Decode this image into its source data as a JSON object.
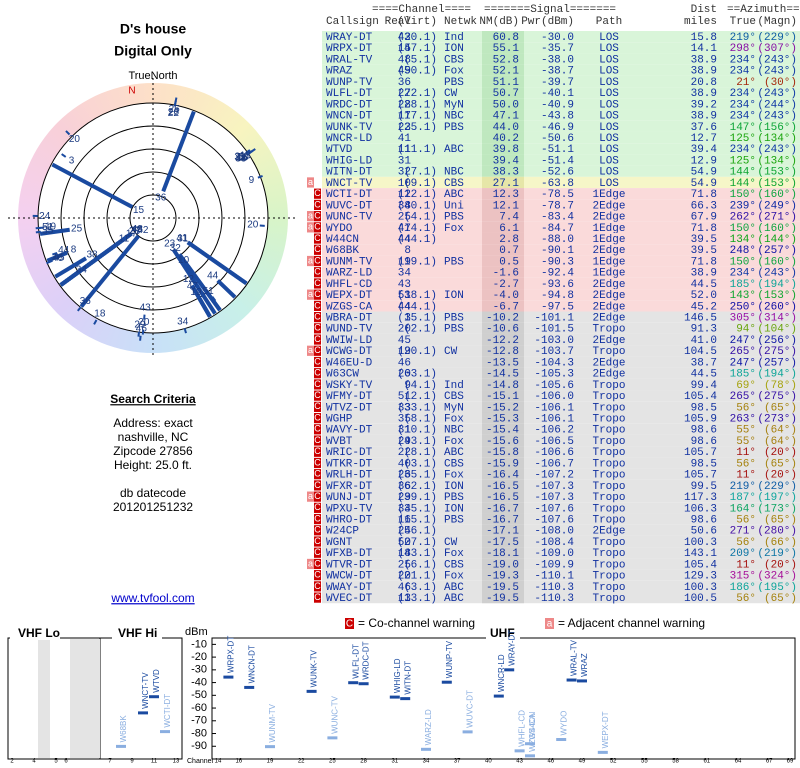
{
  "header": {
    "title": "D's house",
    "subtitle": "Digital Only"
  },
  "polar": {
    "north_label": "TrueNorth",
    "n": "N"
  },
  "search": {
    "title": "Search Criteria",
    "lines": [
      "Address: exact",
      "nashville, NC",
      "Zipcode 27856",
      "Height: 25.0 ft."
    ],
    "db_label": "db datecode",
    "db_value": "201201251232",
    "link": "www.tvfool.com"
  },
  "table": {
    "groups": {
      "channel": "====Channel====",
      "signal": "=======Signal=======",
      "dist": "Dist",
      "azimuth": "==Azimuth=="
    },
    "columns": {
      "c": "Callsign",
      "r": "Real",
      "v": "(Virt)",
      "n": "Netwk",
      "nm": "NM(dB)",
      "p": "Pwr(dBm)",
      "path": "Path",
      "d": "miles",
      "t": "True",
      "m": "(Magn)"
    },
    "rows": [
      {
        "c": "WRAY-DT",
        "r": "42",
        "v": "(30.1)",
        "n": "Ind",
        "nm": "60.8",
        "p": "-30.0",
        "path": "LOS",
        "d": "15.8",
        "t": "219°",
        "m": "(229°)"
      },
      {
        "c": "WRPX-DT",
        "r": "15",
        "v": "(47.1)",
        "n": "ION",
        "nm": "55.1",
        "p": "-35.7",
        "path": "LOS",
        "d": "14.1",
        "t": "298°",
        "m": "(307°)"
      },
      {
        "c": "WRAL-TV",
        "r": "48",
        "v": "(5.1)",
        "n": "CBS",
        "nm": "52.8",
        "p": "-38.0",
        "path": "LOS",
        "d": "38.9",
        "t": "234°",
        "m": "(243°)"
      },
      {
        "c": "WRAZ",
        "r": "49",
        "v": "(50.1)",
        "n": "Fox",
        "nm": "52.1",
        "p": "-38.7",
        "path": "LOS",
        "d": "38.9",
        "t": "234°",
        "m": "(243°)"
      },
      {
        "c": "WUNP-TV",
        "r": "36",
        "n": "PBS",
        "nm": "51.1",
        "p": "-39.7",
        "path": "LOS",
        "d": "20.8",
        "t": "21°",
        "m": "(30°)"
      },
      {
        "c": "WLFL-DT",
        "r": "27",
        "v": "(22.1)",
        "n": "CW",
        "nm": "50.7",
        "p": "-40.1",
        "path": "LOS",
        "d": "38.9",
        "t": "234°",
        "m": "(243°)"
      },
      {
        "c": "WRDC-DT",
        "r": "28",
        "v": "(28.1)",
        "n": "MyN",
        "nm": "50.0",
        "p": "-40.9",
        "path": "LOS",
        "d": "39.2",
        "t": "234°",
        "m": "(244°)"
      },
      {
        "c": "WNCN-DT",
        "r": "17",
        "v": "(17.1)",
        "n": "NBC",
        "nm": "47.1",
        "p": "-43.8",
        "path": "LOS",
        "d": "38.9",
        "t": "234°",
        "m": "(243°)"
      },
      {
        "c": "WUNK-TV",
        "r": "23",
        "v": "(25.1)",
        "n": "PBS",
        "nm": "44.0",
        "p": "-46.9",
        "path": "LOS",
        "d": "37.6",
        "t": "147°",
        "m": "(156°)"
      },
      {
        "c": "WNCR-LD",
        "r": "41",
        "nm": "40.2",
        "p": "-50.6",
        "path": "LOS",
        "d": "12.7",
        "t": "125°",
        "m": "(134°)"
      },
      {
        "c": "WTVD",
        "r": "11",
        "v": "(11.1)",
        "n": "ABC",
        "nm": "39.8",
        "p": "-51.1",
        "path": "LOS",
        "d": "39.4",
        "t": "234°",
        "m": "(243°)"
      },
      {
        "c": "WHIG-LD",
        "r": "31",
        "nm": "39.4",
        "p": "-51.4",
        "path": "LOS",
        "d": "12.9",
        "t": "125°",
        "m": "(134°)"
      },
      {
        "c": "WITN-DT",
        "r": "32",
        "v": "(7.1)",
        "n": "NBC",
        "nm": "38.3",
        "p": "-52.6",
        "path": "LOS",
        "d": "54.9",
        "t": "144°",
        "m": "(153°)"
      },
      {
        "f": [
          "a"
        ],
        "c": "WNCT-TV",
        "r": "10",
        "v": "(9.1)",
        "n": "CBS",
        "nm": "27.1",
        "p": "-63.8",
        "path": "LOS",
        "d": "54.9",
        "t": "144°",
        "m": "(153°)"
      },
      {
        "f": [
          "C"
        ],
        "c": "WCTI-DT",
        "r": "12",
        "v": "(12.1)",
        "n": "ABC",
        "nm": "12.3",
        "p": "-78.5",
        "path": "1Edge",
        "d": "71.8",
        "t": "150°",
        "m": "(160°)"
      },
      {
        "f": [
          "C"
        ],
        "c": "WUVC-DT",
        "r": "38",
        "v": "(40.1)",
        "n": "Uni",
        "nm": "12.1",
        "p": "-78.7",
        "path": "2Edge",
        "d": "66.3",
        "t": "239°",
        "m": "(249°)"
      },
      {
        "f": [
          "a",
          "C"
        ],
        "c": "WUNC-TV",
        "r": "25",
        "v": "(4.1)",
        "n": "PBS",
        "nm": "7.4",
        "p": "-83.4",
        "path": "2Edge",
        "d": "67.9",
        "t": "262°",
        "m": "(271°)"
      },
      {
        "f": [
          "a",
          "C"
        ],
        "c": "WYDO",
        "r": "47",
        "v": "(14.1)",
        "n": "Fox",
        "nm": "6.1",
        "p": "-84.7",
        "path": "1Edge",
        "d": "71.8",
        "t": "150°",
        "m": "(160°)"
      },
      {
        "f": [
          "C"
        ],
        "c": "W44CN",
        "r": "44",
        "v": "(44.1)",
        "nm": "2.8",
        "p": "-88.0",
        "path": "1Edge",
        "d": "39.5",
        "t": "134°",
        "m": "(144°)"
      },
      {
        "f": [
          "C"
        ],
        "c": "W68BK",
        "r": "8",
        "nm": "0.7",
        "p": "-90.1",
        "path": "2Edge",
        "d": "39.5",
        "t": "248°",
        "m": "(257°)"
      },
      {
        "f": [
          "a",
          "C"
        ],
        "c": "WUNM-TV",
        "r": "19",
        "v": "(19.1)",
        "n": "PBS",
        "nm": "0.5",
        "p": "-90.3",
        "path": "1Edge",
        "d": "71.8",
        "t": "150°",
        "m": "(160°)"
      },
      {
        "f": [
          "C"
        ],
        "c": "WARZ-LD",
        "r": "34",
        "nm": "-1.6",
        "p": "-92.4",
        "path": "1Edge",
        "d": "38.9",
        "t": "234°",
        "m": "(243°)"
      },
      {
        "f": [
          "C"
        ],
        "c": "WHFL-CD",
        "r": "43",
        "nm": "-2.7",
        "p": "-93.6",
        "path": "2Edge",
        "d": "44.5",
        "t": "185°",
        "m": "(194°)"
      },
      {
        "f": [
          "a",
          "C"
        ],
        "c": "WEPX-DT",
        "r": "51",
        "v": "(38.1)",
        "n": "ION",
        "nm": "-4.0",
        "p": "-94.8",
        "path": "2Edge",
        "d": "52.0",
        "t": "143°",
        "m": "(153°)"
      },
      {
        "f": [
          "C"
        ],
        "c": "WZGS-CA",
        "r": "44",
        "v": "(44.1)",
        "nm": "-6.7",
        "p": "-97.5",
        "path": "2Edge",
        "d": "45.2",
        "t": "250°",
        "m": "(260°)"
      },
      {
        "f": [
          "C"
        ],
        "c": "WBRA-DT",
        "r": "3",
        "v": "(15.1)",
        "n": "PBS",
        "nm": "-10.2",
        "p": "-101.1",
        "path": "2Edge",
        "d": "146.5",
        "t": "305°",
        "m": "(314°)"
      },
      {
        "f": [
          "C"
        ],
        "c": "WUND-TV",
        "r": "20",
        "v": "(2.1)",
        "n": "PBS",
        "nm": "-10.6",
        "p": "-101.5",
        "path": "Tropo",
        "d": "91.3",
        "t": "94°",
        "m": "(104°)"
      },
      {
        "f": [
          "C"
        ],
        "c": "WWIW-LD",
        "r": "45",
        "nm": "-12.2",
        "p": "-103.0",
        "path": "2Edge",
        "d": "41.0",
        "t": "247°",
        "m": "(256°)"
      },
      {
        "f": [
          "a",
          "C"
        ],
        "c": "WCWG-DT",
        "r": "19",
        "v": "(20.1)",
        "n": "CW",
        "nm": "-12.8",
        "p": "-103.7",
        "path": "Tropo",
        "d": "104.5",
        "t": "265°",
        "m": "(275°)"
      },
      {
        "f": [
          "C"
        ],
        "c": "W46EU-D",
        "r": "46",
        "nm": "-13.5",
        "p": "-104.3",
        "path": "2Edge",
        "d": "38.7",
        "t": "247°",
        "m": "(257°)"
      },
      {
        "f": [
          "C"
        ],
        "c": "W63CW",
        "r": "20",
        "v": "(63.1)",
        "nm": "-14.5",
        "p": "-105.3",
        "path": "2Edge",
        "d": "44.5",
        "t": "185°",
        "m": "(194°)"
      },
      {
        "f": [
          "C"
        ],
        "c": "WSKY-TV",
        "r": "9",
        "v": "(4.1)",
        "n": "Ind",
        "nm": "-14.8",
        "p": "-105.6",
        "path": "Tropo",
        "d": "99.4",
        "t": "69°",
        "m": "(78°)"
      },
      {
        "f": [
          "C"
        ],
        "c": "WFMY-DT",
        "r": "51",
        "v": "(2.1)",
        "n": "CBS",
        "nm": "-15.1",
        "p": "-106.0",
        "path": "Tropo",
        "d": "105.4",
        "t": "265°",
        "m": "(275°)"
      },
      {
        "f": [
          "C"
        ],
        "c": "WTVZ-DT",
        "r": "33",
        "v": "(33.1)",
        "n": "MyN",
        "nm": "-15.2",
        "p": "-106.1",
        "path": "Tropo",
        "d": "98.5",
        "t": "56°",
        "m": "(65°)"
      },
      {
        "f": [
          "C"
        ],
        "c": "WGHP",
        "r": "35",
        "v": "(8.1)",
        "n": "Fox",
        "nm": "-15.3",
        "p": "-106.1",
        "path": "Tropo",
        "d": "105.9",
        "t": "263°",
        "m": "(273°)"
      },
      {
        "f": [
          "C"
        ],
        "c": "WAVY-DT",
        "r": "31",
        "v": "(10.1)",
        "n": "NBC",
        "nm": "-15.4",
        "p": "-106.2",
        "path": "Tropo",
        "d": "98.6",
        "t": "55°",
        "m": "(64°)"
      },
      {
        "f": [
          "C"
        ],
        "c": "WVBT",
        "r": "29",
        "v": "(43.1)",
        "n": "Fox",
        "nm": "-15.6",
        "p": "-106.5",
        "path": "Tropo",
        "d": "98.6",
        "t": "55°",
        "m": "(64°)"
      },
      {
        "f": [
          "C"
        ],
        "c": "WRIC-DT",
        "r": "22",
        "v": "(8.1)",
        "n": "ABC",
        "nm": "-15.8",
        "p": "-106.6",
        "path": "Tropo",
        "d": "105.7",
        "t": "11°",
        "m": "(20°)"
      },
      {
        "f": [
          "C"
        ],
        "c": "WTKR-DT",
        "r": "40",
        "v": "(3.1)",
        "n": "CBS",
        "nm": "-15.9",
        "p": "-106.7",
        "path": "Tropo",
        "d": "98.5",
        "t": "56°",
        "m": "(65°)"
      },
      {
        "f": [
          "C"
        ],
        "c": "WRLH-DT",
        "r": "26",
        "v": "(35.1)",
        "n": "Fox",
        "nm": "-16.4",
        "p": "-107.2",
        "path": "Tropo",
        "d": "105.7",
        "t": "11°",
        "m": "(20°)"
      },
      {
        "f": [
          "C"
        ],
        "c": "WFXR-DT",
        "r": "36",
        "v": "(62.1)",
        "n": "ION",
        "nm": "-16.5",
        "p": "-107.3",
        "path": "Tropo",
        "d": "99.5",
        "t": "219°",
        "m": "(229°)"
      },
      {
        "f": [
          "a",
          "C"
        ],
        "c": "WUNJ-DT",
        "r": "29",
        "v": "(39.1)",
        "n": "PBS",
        "nm": "-16.5",
        "p": "-107.3",
        "path": "Tropo",
        "d": "117.3",
        "t": "187°",
        "m": "(197°)"
      },
      {
        "f": [
          "C"
        ],
        "c": "WPXU-TV",
        "r": "34",
        "v": "(35.1)",
        "n": "ION",
        "nm": "-16.7",
        "p": "-107.6",
        "path": "Tropo",
        "d": "106.3",
        "t": "164°",
        "m": "(173°)"
      },
      {
        "f": [
          "C"
        ],
        "c": "WHRO-DT",
        "r": "16",
        "v": "(15.1)",
        "n": "PBS",
        "nm": "-16.7",
        "p": "-107.6",
        "path": "Tropo",
        "d": "98.6",
        "t": "56°",
        "m": "(65°)"
      },
      {
        "f": [
          "C"
        ],
        "c": "W24CP",
        "r": "24",
        "v": "(56.1)",
        "nm": "-17.1",
        "p": "-108.0",
        "path": "2Edge",
        "d": "50.6",
        "t": "271°",
        "m": "(280°)"
      },
      {
        "f": [
          "C"
        ],
        "c": "WGNT",
        "r": "50",
        "v": "(27.1)",
        "n": "CW",
        "nm": "-17.5",
        "p": "-108.4",
        "path": "Tropo",
        "d": "100.3",
        "t": "56°",
        "m": "(66°)"
      },
      {
        "f": [
          "C"
        ],
        "c": "WFXB-DT",
        "r": "18",
        "v": "(43.1)",
        "n": "Fox",
        "nm": "-18.1",
        "p": "-109.0",
        "path": "Tropo",
        "d": "143.1",
        "t": "209°",
        "m": "(219°)"
      },
      {
        "f": [
          "a",
          "C"
        ],
        "c": "WTVR-DT",
        "r": "25",
        "v": "(6.1)",
        "n": "CBS",
        "nm": "-19.0",
        "p": "-109.9",
        "path": "Tropo",
        "d": "105.4",
        "t": "11°",
        "m": "(20°)"
      },
      {
        "f": [
          "C"
        ],
        "c": "WWCW-DT",
        "r": "20",
        "v": "(21.1)",
        "n": "Fox",
        "nm": "-19.3",
        "p": "-110.1",
        "path": "Tropo",
        "d": "129.3",
        "t": "315°",
        "m": "(324°)"
      },
      {
        "f": [
          "C"
        ],
        "c": "WWAY-DT",
        "r": "46",
        "v": "(3.1)",
        "n": "ABC",
        "nm": "-19.5",
        "p": "-110.3",
        "path": "Tropo",
        "d": "100.3",
        "t": "186°",
        "m": "(195°)"
      },
      {
        "f": [
          "C"
        ],
        "c": "WVEC-DT",
        "r": "13",
        "v": "(13.1)",
        "n": "ABC",
        "nm": "-19.5",
        "p": "-110.3",
        "path": "Tropo",
        "d": "100.5",
        "t": "56°",
        "m": "(65°)"
      }
    ]
  },
  "legend": {
    "co_flag": "C",
    "co": "= Co-channel warning",
    "adj_flag": "a",
    "adj": "= Adjacent channel warning"
  },
  "spectrum": {
    "bands": [
      "VHF Lo",
      "VHF Hi",
      "UHF"
    ],
    "y_label": "dBm",
    "x_label": "Channel",
    "ylim": [
      -100,
      -5
    ],
    "yticks": [
      -10,
      -20,
      -30,
      -40,
      -50,
      -60,
      -70,
      -80,
      -90
    ],
    "xticks": [
      2,
      4,
      5,
      6,
      7,
      9,
      11,
      13,
      14,
      16,
      19,
      22,
      25,
      28,
      31,
      34,
      37,
      40,
      43,
      46,
      49,
      52,
      55,
      58,
      61,
      64,
      67,
      69
    ]
  }
}
